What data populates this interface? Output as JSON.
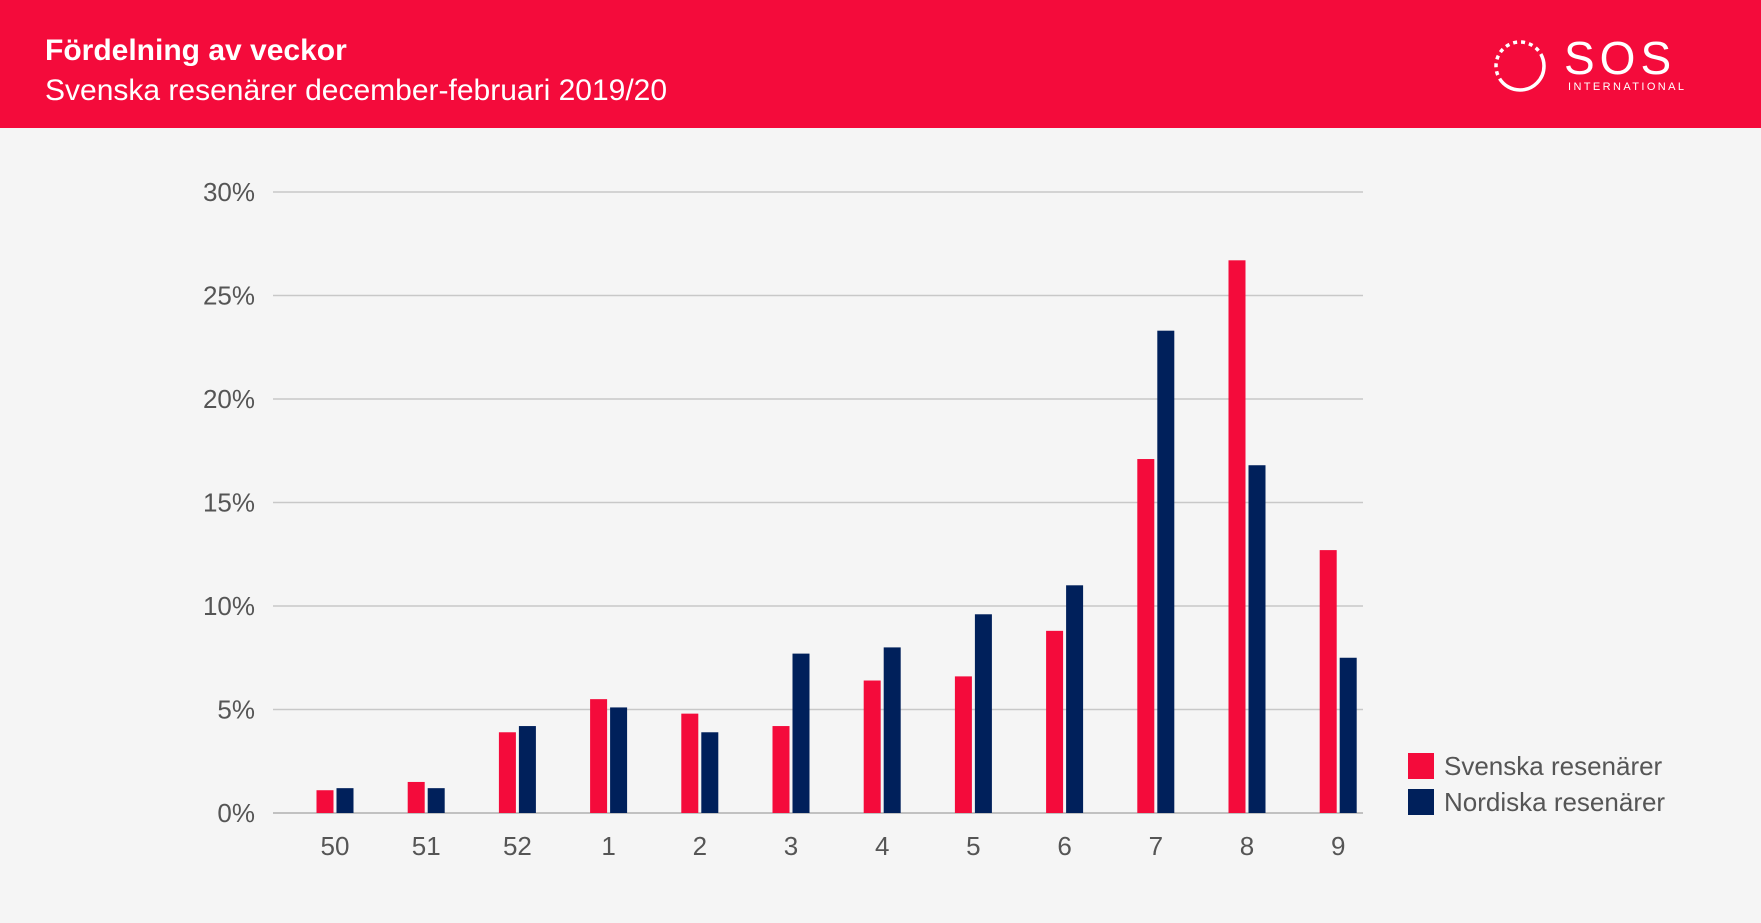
{
  "header": {
    "title": "Fördelning av veckor",
    "subtitle": "Svenska resenärer december-februari 2019/20",
    "logo_name": "SOS",
    "logo_sub": "INTERNATIONAL"
  },
  "colors": {
    "brand_red": "#f40b3b",
    "navy": "#00205b",
    "background": "#f5f5f5",
    "grid": "#c8c8c8"
  },
  "chart_data": {
    "type": "bar",
    "title": "Fördelning av veckor",
    "subtitle": "Svenska resenärer december-februari 2019/20",
    "categories": [
      "50",
      "51",
      "52",
      "1",
      "2",
      "3",
      "4",
      "5",
      "6",
      "7",
      "8",
      "9"
    ],
    "series": [
      {
        "name": "Svenska resenärer",
        "color": "#f40b3b",
        "values": [
          1.1,
          1.5,
          3.9,
          5.5,
          4.8,
          4.2,
          6.4,
          6.6,
          8.8,
          17.1,
          26.7,
          12.7
        ]
      },
      {
        "name": "Nordiska resenärer",
        "color": "#00205b",
        "values": [
          1.2,
          1.2,
          4.2,
          5.1,
          3.9,
          7.7,
          8.0,
          9.6,
          11.0,
          23.3,
          16.8,
          7.5
        ]
      }
    ],
    "y_ticks": [
      "0%",
      "5%",
      "10%",
      "15%",
      "20%",
      "25%",
      "30%"
    ],
    "ylim": [
      0,
      30
    ],
    "grid": true,
    "legend_position": "bottom-right"
  }
}
